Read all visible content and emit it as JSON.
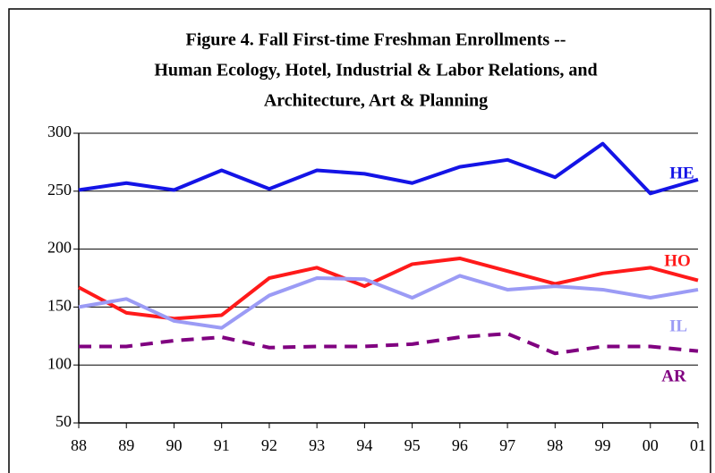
{
  "chart_data": {
    "type": "line",
    "title": [
      "Figure 4. Fall First-time Freshman Enrollments --",
      "Human Ecology, Hotel, Industrial & Labor Relations, and",
      "Architecture, Art & Planning"
    ],
    "categories": [
      "88",
      "89",
      "90",
      "91",
      "92",
      "93",
      "94",
      "95",
      "96",
      "97",
      "98",
      "99",
      "00",
      "01"
    ],
    "series": [
      {
        "name": "HE",
        "color": "#1414e6",
        "dashed": false,
        "values": [
          251,
          257,
          251,
          268,
          252,
          268,
          265,
          257,
          271,
          277,
          262,
          291,
          248,
          260
        ]
      },
      {
        "name": "HO",
        "color": "#ff1a1a",
        "dashed": false,
        "values": [
          167,
          145,
          140,
          143,
          175,
          184,
          168,
          187,
          192,
          181,
          170,
          179,
          184,
          173
        ]
      },
      {
        "name": "IL",
        "color": "#9b9bf5",
        "dashed": false,
        "values": [
          150,
          157,
          138,
          132,
          160,
          175,
          174,
          158,
          177,
          165,
          168,
          165,
          158,
          165
        ]
      },
      {
        "name": "AR",
        "color": "#800080",
        "dashed": true,
        "values": [
          116,
          116,
          121,
          124,
          115,
          116,
          116,
          118,
          124,
          127,
          110,
          116,
          116,
          112
        ]
      }
    ],
    "ylim": [
      50,
      300
    ],
    "yticks": [
      50,
      100,
      150,
      200,
      250,
      300
    ],
    "grid": true
  }
}
